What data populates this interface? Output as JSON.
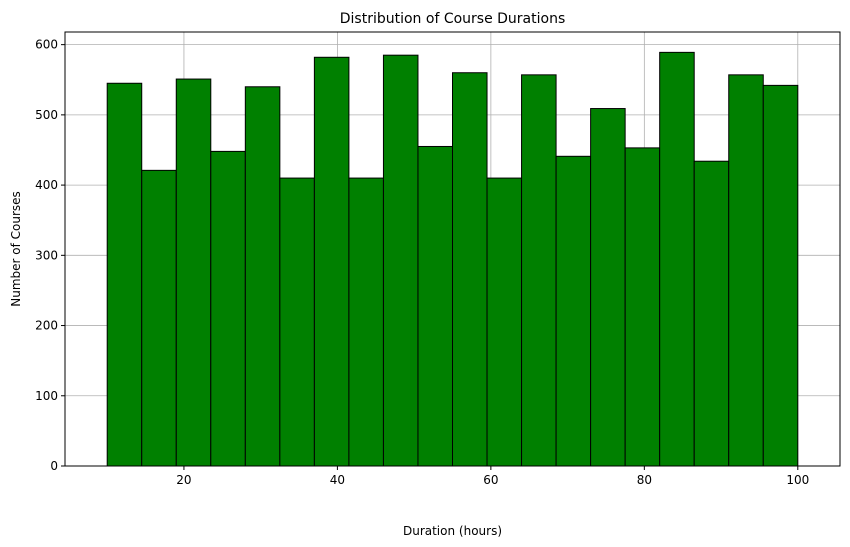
{
  "chart_data": {
    "type": "bar",
    "title": "Distribution of Course Durations",
    "xlabel": "Duration (hours)",
    "ylabel": "Number of Courses",
    "bin_edges": [
      10,
      14.5,
      19,
      23.5,
      28,
      32.5,
      37,
      41.5,
      46,
      50.5,
      55,
      59.5,
      64,
      68.5,
      73,
      77.5,
      82,
      86.5,
      91,
      95.5,
      100
    ],
    "values": [
      545,
      421,
      551,
      448,
      540,
      410,
      582,
      410,
      585,
      455,
      560,
      410,
      557,
      441,
      509,
      453,
      589,
      434,
      557,
      542
    ],
    "xlim": [
      4.5,
      105.5
    ],
    "ylim": [
      0,
      618
    ],
    "xticks": [
      20,
      40,
      60,
      80,
      100
    ],
    "yticks": [
      0,
      100,
      200,
      300,
      400,
      500,
      600
    ],
    "bar_color": "#008000",
    "edge_color": "#000000",
    "grid": true,
    "legend": "none"
  }
}
